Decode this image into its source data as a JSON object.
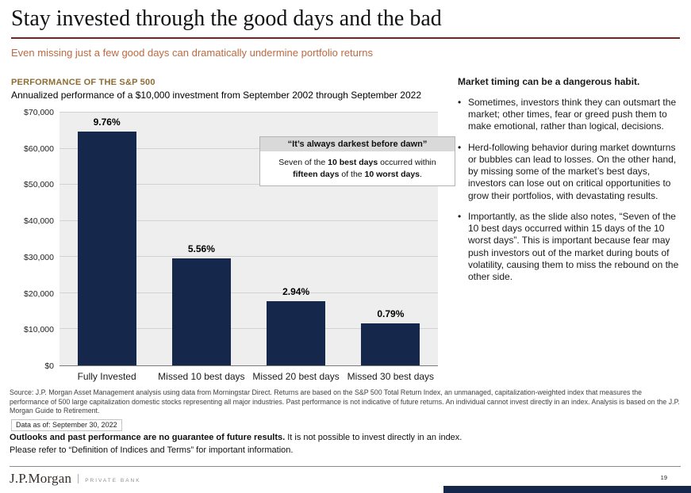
{
  "slide": {
    "title": "Stay invested through the good days and the bad",
    "subtitle": "Even missing just a few good days can dramatically undermine portfolio returns",
    "section_header": "PERFORMANCE OF THE S&P 500",
    "page_number": "19"
  },
  "chart_data": {
    "type": "bar",
    "title": "Annualized performance of a $10,000 investment from September 2002 through September 2022",
    "categories": [
      "Fully Invested",
      "Missed 10 best days",
      "Missed 20 best days",
      "Missed 30 best days"
    ],
    "values": [
      64800,
      29700,
      17800,
      11700
    ],
    "bar_labels": [
      "9.76%",
      "5.56%",
      "2.94%",
      "0.79%"
    ],
    "ylim": [
      0,
      70000
    ],
    "ytick_values": [
      0,
      10000,
      20000,
      30000,
      40000,
      50000,
      60000,
      70000
    ],
    "ytick_labels": [
      "$0",
      "$10,000",
      "$20,000",
      "$30,000",
      "$40,000",
      "$50,000",
      "$60,000",
      "$70,000"
    ],
    "bar_color": "#15284B",
    "grid": true,
    "legend": "none",
    "plot_background": "#EEEEEE"
  },
  "callout": {
    "header": "“It’s always darkest before dawn”",
    "body_segments": [
      {
        "text": "Seven of the ",
        "bold": false
      },
      {
        "text": "10 best days",
        "bold": true
      },
      {
        "text": " occurred within ",
        "bold": false
      },
      {
        "text": "fifteen days",
        "bold": true
      },
      {
        "text": " of the ",
        "bold": false
      },
      {
        "text": "10 worst days",
        "bold": true
      },
      {
        "text": ".",
        "bold": false
      }
    ]
  },
  "right_panel": {
    "heading": "Market timing can be a dangerous habit.",
    "bullets": [
      "Sometimes, investors think they can outsmart the market; other times, fear or greed push them to make emotional, rather than logical, decisions.",
      "Herd-following behavior during market downturns or bubbles can lead to losses. On the other hand, by missing some of the market’s best days, investors can lose out on critical opportunities to grow their portfolios, with devastating results.",
      "Importantly, as the slide also notes, “Seven of the 10 best days occurred within 15 days of the 10 worst days”. This is important because fear may push investors out of the market during bouts of volatility, causing them to miss the rebound on the other side."
    ]
  },
  "footer": {
    "source": "Source: J.P. Morgan Asset Management analysis using data from Morningstar Direct. Returns are based on the S&P 500 Total Return Index, an unmanaged, capitalization-weighted index that measures the performance of 500 large capitalization domestic stocks representing all major industries. Past performance is not indicative of future returns. An individual cannot invest directly in an index. Analysis is based on the J.P. Morgan Guide to Retirement.",
    "data_as_of": "Data as of: September 30, 2022",
    "disclaimer_bold": "Outlooks and past performance are no guarantee of future results.",
    "disclaimer_regular": " It is not possible to invest directly in an index.",
    "terms": "Please refer to “Definition of Indices and Terms” for important information.",
    "logo_text": "J.P.Morgan",
    "logo_sub": "PRIVATE BANK"
  },
  "colors": {
    "bar": "#15284B",
    "title_rule": "#7B1F21",
    "subtitle": "#BC6A41",
    "section_header": "#8C6D35",
    "bottom_bar": "#15284B"
  }
}
